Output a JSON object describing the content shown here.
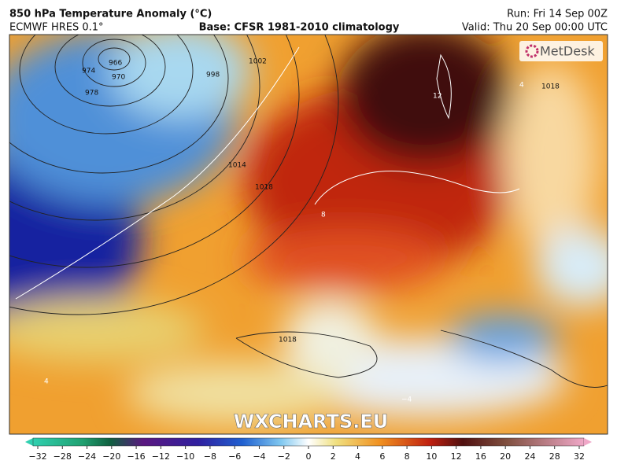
{
  "header": {
    "title": "850 hPa Temperature Anomaly (°C)",
    "model": "ECMWF HRES 0.1°",
    "base": "Base: CFSR 1981-2010 climatology",
    "run": "Run: Fri 14 Sep 00Z",
    "valid": "Valid: Thu 20 Sep 00:00 UTC"
  },
  "logo": "MetDesk",
  "watermark": "WXCHARTS.EU",
  "map_labels": [
    "966",
    "970",
    "974",
    "978",
    "998",
    "1002",
    "1014",
    "1018",
    "1018",
    "1018",
    "12",
    "8",
    "4",
    "4",
    "−4"
  ],
  "colorbar": {
    "ticks": [
      {
        "value": -32,
        "label": "−32"
      },
      {
        "value": -28,
        "label": "−28"
      },
      {
        "value": -24,
        "label": "−24"
      },
      {
        "value": -20,
        "label": "−20"
      },
      {
        "value": -16,
        "label": "−16"
      },
      {
        "value": -12,
        "label": "−12"
      },
      {
        "value": -10,
        "label": "−10"
      },
      {
        "value": -8,
        "label": "−8"
      },
      {
        "value": -6,
        "label": "−6"
      },
      {
        "value": -4,
        "label": "−4"
      },
      {
        "value": -2,
        "label": "−2"
      },
      0,
      2,
      4,
      6,
      8,
      10,
      12,
      16,
      20,
      24,
      28,
      32
    ]
  }
}
